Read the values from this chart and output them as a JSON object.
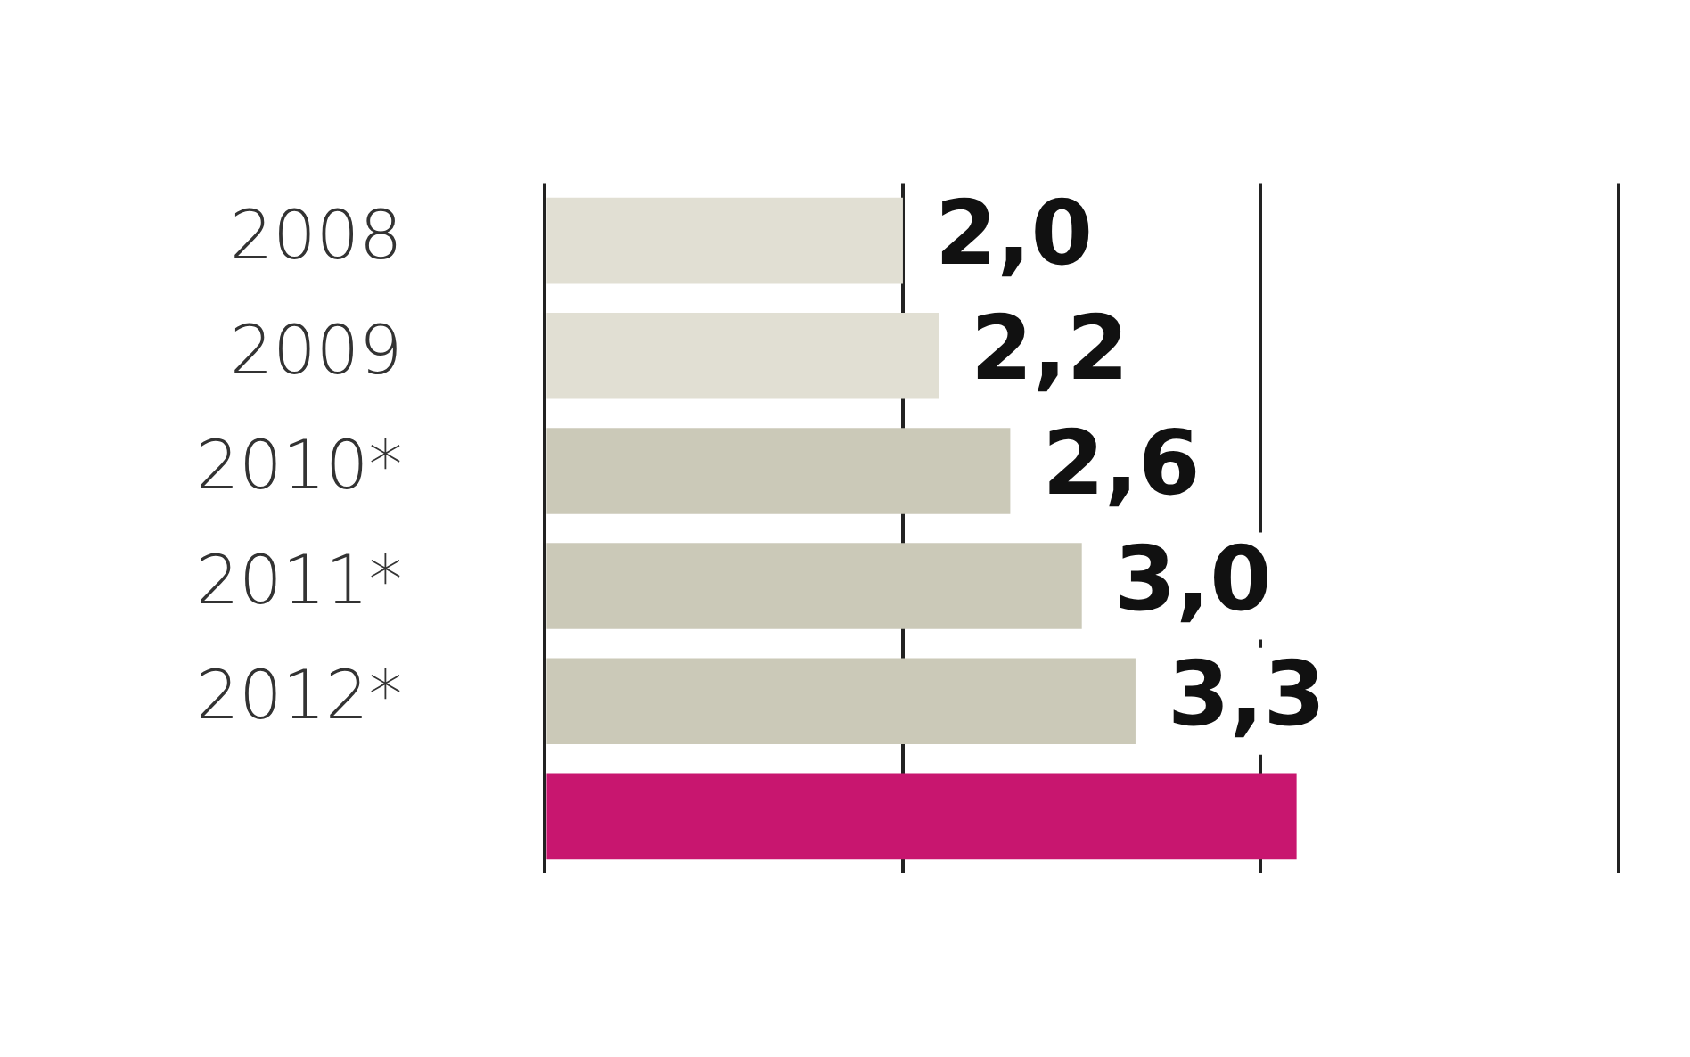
{
  "chart_data": {
    "type": "bar",
    "orientation": "horizontal",
    "categories": [
      "2008",
      "2009",
      "2010*",
      "2011*",
      "2012*",
      null
    ],
    "values": [
      2.0,
      2.2,
      2.6,
      3.0,
      3.3,
      4.2
    ],
    "colors": [
      "#e1dfd3",
      "#e1dfd3",
      "#cbc9b8",
      "#cbc9b8",
      "#cbc9b8",
      "#c8166f"
    ],
    "value_labels": [
      "2,0",
      "2,2",
      "2,6",
      "3,0",
      "3,3",
      null
    ],
    "xlim": [
      0,
      6
    ],
    "xticks": [
      {
        "value": 0,
        "label": null
      },
      {
        "value": 2,
        "label": null
      },
      {
        "value": 4,
        "label": null
      },
      {
        "value": 6,
        "label": null
      }
    ],
    "tick_labels": "y",
    "grid": "x",
    "legend": false
  }
}
